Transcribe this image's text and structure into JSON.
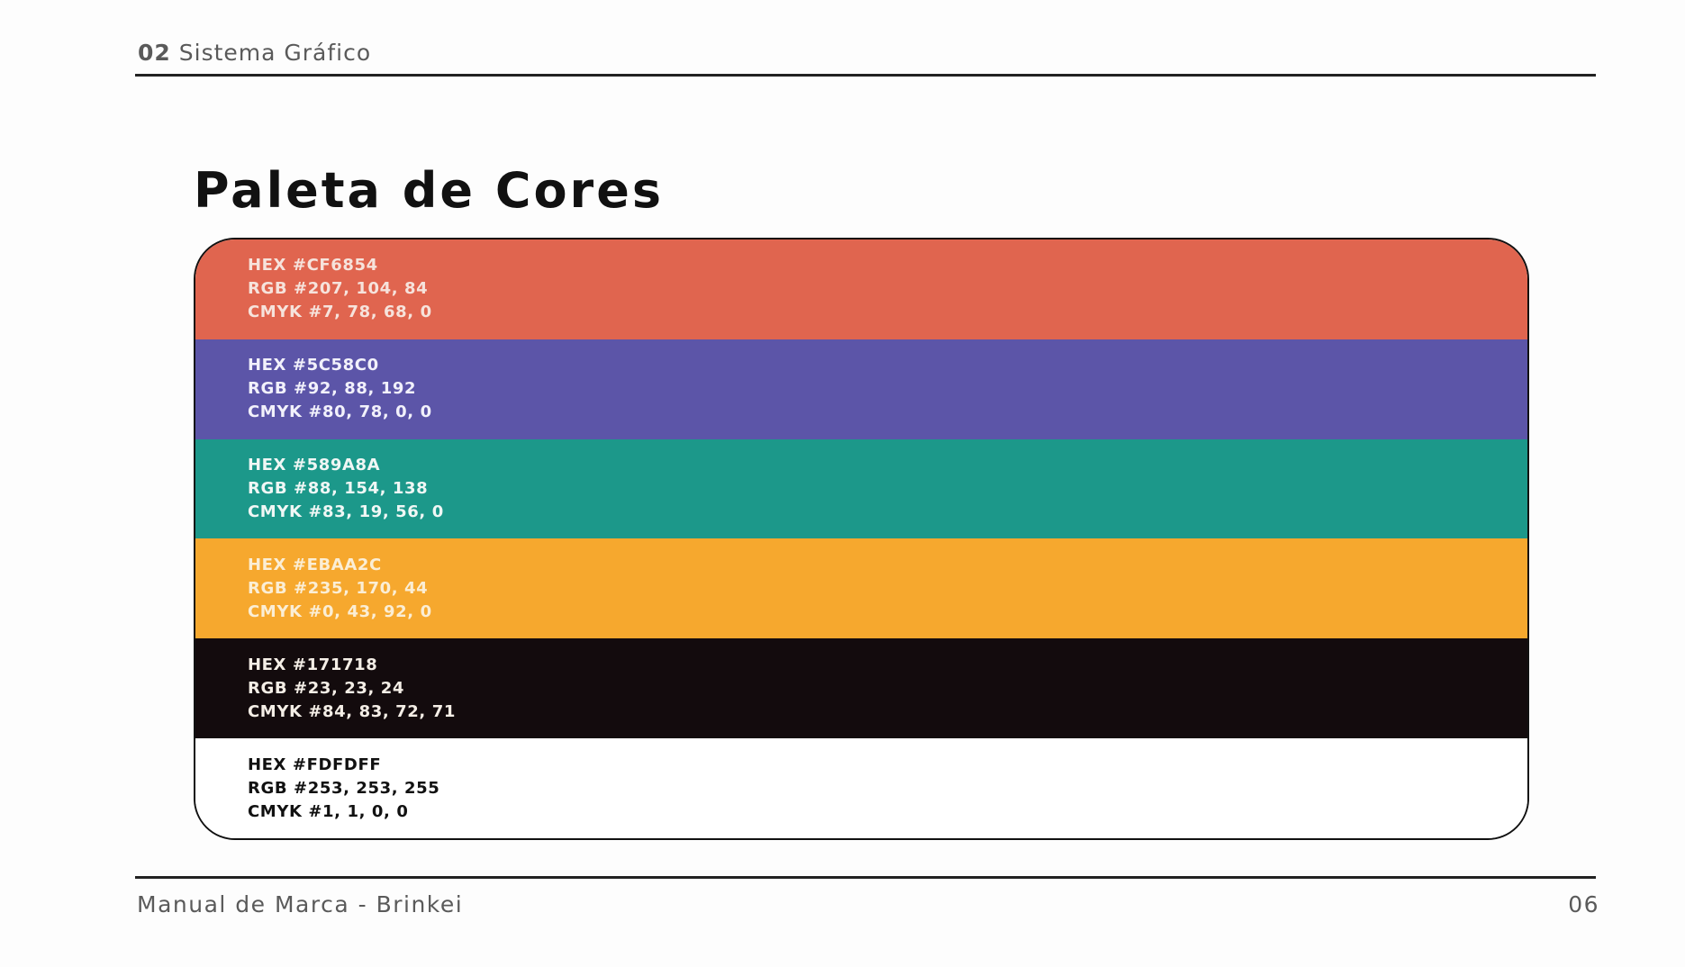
{
  "header": {
    "number": "02",
    "title": "Sistema Gráfico"
  },
  "title": "Paleta de Cores",
  "swatches": [
    {
      "bg": "#E0654F",
      "text_color": "#f6e3dc",
      "hex": "HEX #CF6854",
      "rgb": "RGB #207, 104, 84",
      "cmyk": "CMYK #7, 78, 68, 0"
    },
    {
      "bg": "#5C55A8",
      "text_color": "#f2f1fb",
      "hex": "HEX #5C58C0",
      "rgb": "RGB #92, 88, 192",
      "cmyk": "CMYK #80, 78, 0, 0"
    },
    {
      "bg": "#1C988A",
      "text_color": "#f0f7f5",
      "hex": "HEX #589A8A",
      "rgb": "RGB #88, 154, 138",
      "cmyk": "CMYK #83, 19, 56, 0"
    },
    {
      "bg": "#F6A82E",
      "text_color": "#fbeed5",
      "hex": "HEX #EBAA2C",
      "rgb": "RGB #235, 170, 44",
      "cmyk": "CMYK #0, 43, 92, 0"
    },
    {
      "bg": "#130B0D",
      "text_color": "#f4eee6",
      "hex": "HEX #171718",
      "rgb": "RGB #23, 23, 24",
      "cmyk": "CMYK #84, 83, 72, 71"
    },
    {
      "bg": "#FFFFFF",
      "text_color": "#111111",
      "hex": "HEX #FDFDFF",
      "rgb": "RGB #253, 253, 255",
      "cmyk": "CMYK #1, 1, 0, 0"
    }
  ],
  "footer": {
    "left": "Manual de Marca - Brinkei",
    "page_number": "06"
  }
}
